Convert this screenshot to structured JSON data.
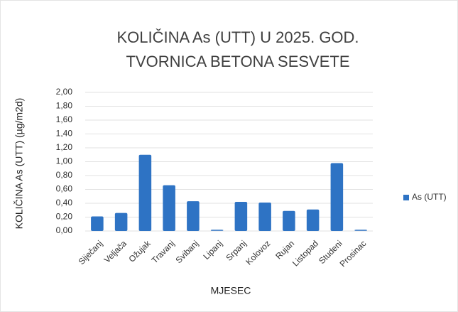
{
  "chart_data": {
    "type": "bar",
    "title": [
      "KOLIČINA As (UTT) U 2025. GOD.",
      "TVORNICA BETONA SESVETE"
    ],
    "x_label": "MJESEC",
    "y_label": "KOLIČINA As (UTT) (µg/m2d)",
    "categories": [
      "Siječanj",
      "Veljača",
      "Ožujak",
      "Travanj",
      "Svibanj",
      "Lipanj",
      "Srpanj",
      "Kolovoz",
      "Rujan",
      "Listopad",
      "Studeni",
      "Prosinac"
    ],
    "series": [
      {
        "name": "As (UTT)",
        "color": "#2e73c4",
        "values": [
          0.21,
          0.26,
          1.1,
          0.66,
          0.43,
          0.01,
          0.42,
          0.41,
          0.29,
          0.31,
          0.98,
          0.01
        ]
      }
    ],
    "ylim": [
      0,
      2
    ],
    "yticks": [
      {
        "value": 0,
        "label": "0,00"
      },
      {
        "value": 0.2,
        "label": "0,20"
      },
      {
        "value": 0.4,
        "label": "0,40"
      },
      {
        "value": 0.6,
        "label": "0,60"
      },
      {
        "value": 0.8,
        "label": "0,80"
      },
      {
        "value": 1,
        "label": "1,00"
      },
      {
        "value": 1.2,
        "label": "1,20"
      },
      {
        "value": 1.4,
        "label": "1,40"
      },
      {
        "value": 1.6,
        "label": "1,60"
      },
      {
        "value": 1.8,
        "label": "1,80"
      },
      {
        "value": 2,
        "label": "2,00"
      }
    ],
    "grid": true,
    "legend": "right"
  }
}
